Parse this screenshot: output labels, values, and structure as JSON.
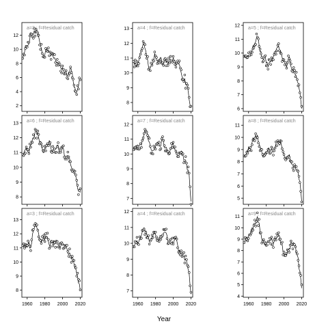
{
  "chart_data": {
    "type": "scatter",
    "xlabel": "Year",
    "x_ticks": [
      1960,
      1980,
      2000,
      2020
    ],
    "xlim": [
      1954,
      2022
    ],
    "panels": [
      {
        "title": "a=3 ; f=Residual catch",
        "ylim": [
          1.2,
          13.8
        ],
        "yticks": [
          2,
          4,
          6,
          8,
          10,
          12
        ],
        "anchors": [
          [
            1955,
            8.8
          ],
          [
            1958,
            10.5
          ],
          [
            1961,
            10.6
          ],
          [
            1964,
            12.4
          ],
          [
            1967,
            12.1
          ],
          [
            1970,
            12.8
          ],
          [
            1973,
            11.8
          ],
          [
            1976,
            10.2
          ],
          [
            1979,
            8.7
          ],
          [
            1982,
            10.2
          ],
          [
            1985,
            9.5
          ],
          [
            1988,
            9.4
          ],
          [
            1991,
            8.8
          ],
          [
            1994,
            8.2
          ],
          [
            1997,
            8.0
          ],
          [
            2000,
            7.4
          ],
          [
            2003,
            6.8
          ],
          [
            2006,
            6.3
          ],
          [
            2009,
            7.6
          ],
          [
            2012,
            5.5
          ],
          [
            2015,
            3.8
          ],
          [
            2018,
            4.8
          ],
          [
            2020,
            5.8
          ]
        ]
      },
      {
        "title": "a=4 ; f=Residual catch",
        "ylim": [
          7.4,
          13.4
        ],
        "yticks": [
          8,
          9,
          10,
          11,
          12,
          13
        ],
        "anchors": [
          [
            1955,
            10.8
          ],
          [
            1958,
            10.4
          ],
          [
            1961,
            10.8
          ],
          [
            1964,
            11.6
          ],
          [
            1967,
            11.9
          ],
          [
            1970,
            11.0
          ],
          [
            1973,
            10.2
          ],
          [
            1976,
            10.5
          ],
          [
            1979,
            11.3
          ],
          [
            1982,
            10.8
          ],
          [
            1985,
            11.0
          ],
          [
            1988,
            10.5
          ],
          [
            1991,
            11.0
          ],
          [
            1994,
            10.6
          ],
          [
            1997,
            10.9
          ],
          [
            2000,
            11.0
          ],
          [
            2003,
            10.5
          ],
          [
            2006,
            10.6
          ],
          [
            2009,
            10.0
          ],
          [
            2012,
            9.5
          ],
          [
            2015,
            9.2
          ],
          [
            2018,
            8.2
          ],
          [
            2020,
            7.7
          ]
        ]
      },
      {
        "title": "a=5 ; f=Residual catch",
        "ylim": [
          5.8,
          12.2
        ],
        "yticks": [
          6,
          7,
          8,
          9,
          10,
          11,
          12
        ],
        "anchors": [
          [
            1955,
            9.8
          ],
          [
            1958,
            9.7
          ],
          [
            1961,
            9.8
          ],
          [
            1964,
            10.2
          ],
          [
            1967,
            10.7
          ],
          [
            1970,
            11.2
          ],
          [
            1973,
            10.1
          ],
          [
            1976,
            9.6
          ],
          [
            1979,
            9.7
          ],
          [
            1982,
            9.0
          ],
          [
            1985,
            9.4
          ],
          [
            1988,
            9.7
          ],
          [
            1991,
            10.2
          ],
          [
            1994,
            10.5
          ],
          [
            1997,
            10.0
          ],
          [
            2000,
            9.4
          ],
          [
            2003,
            9.0
          ],
          [
            2006,
            9.7
          ],
          [
            2009,
            8.8
          ],
          [
            2012,
            8.5
          ],
          [
            2015,
            8.0
          ],
          [
            2018,
            7.2
          ],
          [
            2020,
            6.0
          ]
        ]
      },
      {
        "title": "a=6 ; f=Residual catch",
        "ylim": [
          7.5,
          13.5
        ],
        "yticks": [
          8,
          9,
          10,
          11,
          12,
          13
        ],
        "anchors": [
          [
            1955,
            10.9
          ],
          [
            1958,
            11.2
          ],
          [
            1961,
            11.0
          ],
          [
            1964,
            11.5
          ],
          [
            1967,
            12.0
          ],
          [
            1970,
            12.6
          ],
          [
            1973,
            12.0
          ],
          [
            1976,
            11.5
          ],
          [
            1979,
            11.0
          ],
          [
            1982,
            11.6
          ],
          [
            1985,
            11.8
          ],
          [
            1988,
            11.0
          ],
          [
            1991,
            11.2
          ],
          [
            1994,
            11.5
          ],
          [
            1997,
            11.0
          ],
          [
            2000,
            11.3
          ],
          [
            2003,
            10.6
          ],
          [
            2006,
            10.8
          ],
          [
            2009,
            10.2
          ],
          [
            2012,
            9.8
          ],
          [
            2015,
            9.4
          ],
          [
            2018,
            8.4
          ],
          [
            2020,
            8.3
          ]
        ]
      },
      {
        "title": "a=7 ; f=Residual catch",
        "ylim": [
          6.6,
          12.6
        ],
        "yticks": [
          7,
          8,
          9,
          10,
          11,
          12
        ],
        "anchors": [
          [
            1955,
            10.3
          ],
          [
            1958,
            10.4
          ],
          [
            1961,
            10.5
          ],
          [
            1964,
            10.6
          ],
          [
            1967,
            11.4
          ],
          [
            1970,
            11.6
          ],
          [
            1973,
            10.8
          ],
          [
            1976,
            10.2
          ],
          [
            1979,
            10.3
          ],
          [
            1982,
            10.8
          ],
          [
            1985,
            10.5
          ],
          [
            1988,
            11.0
          ],
          [
            1991,
            10.4
          ],
          [
            1994,
            10.0
          ],
          [
            1997,
            10.4
          ],
          [
            2000,
            10.7
          ],
          [
            2003,
            10.2
          ],
          [
            2006,
            9.8
          ],
          [
            2009,
            10.2
          ],
          [
            2012,
            9.6
          ],
          [
            2015,
            9.3
          ],
          [
            2018,
            8.6
          ],
          [
            2020,
            6.8
          ]
        ]
      },
      {
        "title": "a=8 ; f=Residual catch",
        "ylim": [
          4.5,
          11.8
        ],
        "yticks": [
          5,
          6,
          7,
          8,
          9,
          10,
          11
        ],
        "anchors": [
          [
            1955,
            8.5
          ],
          [
            1958,
            8.9
          ],
          [
            1961,
            9.0
          ],
          [
            1964,
            9.6
          ],
          [
            1967,
            10.0
          ],
          [
            1970,
            10.2
          ],
          [
            1973,
            9.2
          ],
          [
            1976,
            8.4
          ],
          [
            1979,
            8.5
          ],
          [
            1982,
            9.1
          ],
          [
            1985,
            9.0
          ],
          [
            1988,
            8.8
          ],
          [
            1991,
            9.5
          ],
          [
            1994,
            9.7
          ],
          [
            1997,
            9.4
          ],
          [
            2000,
            8.5
          ],
          [
            2003,
            8.3
          ],
          [
            2006,
            8.6
          ],
          [
            2009,
            7.8
          ],
          [
            2012,
            7.6
          ],
          [
            2015,
            7.2
          ],
          [
            2018,
            6.4
          ],
          [
            2020,
            4.8
          ]
        ]
      },
      {
        "title": "a=3 ; f=Residual catch",
        "ylim": [
          7.5,
          13.8
        ],
        "yticks": [
          8,
          9,
          10,
          11,
          12,
          13
        ],
        "anchors": [
          [
            1955,
            11.2
          ],
          [
            1958,
            11.0
          ],
          [
            1961,
            11.3
          ],
          [
            1964,
            11.0
          ],
          [
            1967,
            12.2
          ],
          [
            1970,
            12.8
          ],
          [
            1973,
            12.0
          ],
          [
            1976,
            11.4
          ],
          [
            1979,
            11.8
          ],
          [
            1982,
            11.8
          ],
          [
            1985,
            11.2
          ],
          [
            1988,
            11.5
          ],
          [
            1991,
            11.5
          ],
          [
            1994,
            11.3
          ],
          [
            1997,
            11.0
          ],
          [
            2000,
            11.2
          ],
          [
            2003,
            11.0
          ],
          [
            2006,
            10.6
          ],
          [
            2009,
            10.5
          ],
          [
            2012,
            10.2
          ],
          [
            2015,
            9.5
          ],
          [
            2018,
            8.5
          ],
          [
            2020,
            8.0
          ]
        ]
      },
      {
        "title": "a=4 ; f=Residual catch",
        "ylim": [
          6.6,
          12.2
        ],
        "yticks": [
          7,
          8,
          9,
          10,
          11,
          12
        ],
        "anchors": [
          [
            1955,
            9.8
          ],
          [
            1958,
            10.0
          ],
          [
            1961,
            10.1
          ],
          [
            1964,
            10.5
          ],
          [
            1967,
            11.0
          ],
          [
            1970,
            10.6
          ],
          [
            1973,
            10.1
          ],
          [
            1976,
            10.3
          ],
          [
            1979,
            10.6
          ],
          [
            1982,
            10.2
          ],
          [
            1985,
            10.5
          ],
          [
            1988,
            10.4
          ],
          [
            1991,
            10.7
          ],
          [
            1994,
            10.1
          ],
          [
            1997,
            10.0
          ],
          [
            2000,
            9.9
          ],
          [
            2003,
            10.3
          ],
          [
            2006,
            9.5
          ],
          [
            2009,
            9.4
          ],
          [
            2012,
            9.2
          ],
          [
            2015,
            8.9
          ],
          [
            2018,
            8.1
          ],
          [
            2020,
            6.8
          ]
        ]
      },
      {
        "title": "a=9 ; f=Residual catch",
        "ylim": [
          3.9,
          11.7
        ],
        "yticks": [
          4,
          5,
          6,
          7,
          8,
          9,
          10,
          11
        ],
        "anchors": [
          [
            1955,
            8.7
          ],
          [
            1958,
            9.2
          ],
          [
            1961,
            9.4
          ],
          [
            1964,
            10.0
          ],
          [
            1967,
            10.4
          ],
          [
            1970,
            11.0
          ],
          [
            1973,
            9.7
          ],
          [
            1976,
            8.8
          ],
          [
            1979,
            8.5
          ],
          [
            1982,
            8.8
          ],
          [
            1985,
            8.9
          ],
          [
            1988,
            8.6
          ],
          [
            1991,
            9.0
          ],
          [
            1994,
            9.4
          ],
          [
            1997,
            8.6
          ],
          [
            2000,
            7.8
          ],
          [
            2003,
            7.6
          ],
          [
            2006,
            8.2
          ],
          [
            2009,
            8.7
          ],
          [
            2012,
            8.5
          ],
          [
            2015,
            7.6
          ],
          [
            2018,
            6.2
          ],
          [
            2020,
            4.7
          ]
        ]
      }
    ]
  }
}
